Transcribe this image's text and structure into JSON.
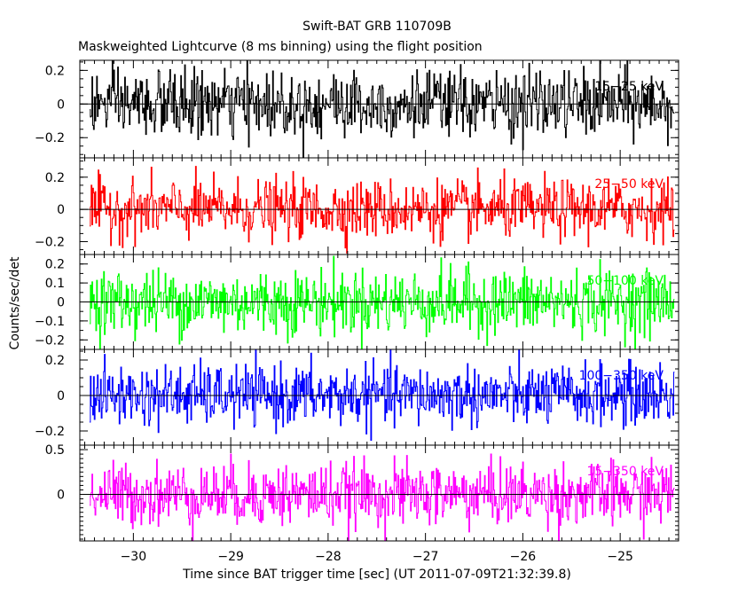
{
  "chart_data": {
    "type": "line",
    "title": "Swift-BAT GRB 110709B",
    "subtitle": "Maskweighted Lightcurve (8 ms binning) using the flight position",
    "xlabel": "Time since BAT trigger time [sec] (UT 2011-07-09T21:32:39.8)",
    "ylabel": "Counts/sec/det",
    "xlim": [
      -30.55,
      -24.4
    ],
    "xticks": [
      -30,
      -29,
      -28,
      -27,
      -26,
      -25
    ],
    "xtick_labels": [
      "−30",
      "−29",
      "−28",
      "−27",
      "−26",
      "−25"
    ],
    "data_range": [
      -30.45,
      -24.45
    ],
    "bin_width_s": 0.008,
    "panels": [
      {
        "name": "15-25 keV",
        "label": "15−25 keV",
        "color": "#000000",
        "ylim": [
          -0.32,
          0.26
        ],
        "amplitude": 0.2,
        "yticks": [
          -0.2,
          0,
          0.2
        ],
        "ytick_labels": [
          "−0.2",
          "0",
          "0.2"
        ]
      },
      {
        "name": "25-50 keV",
        "label": "25−50 keV",
        "color": "#ff0000",
        "ylim": [
          -0.28,
          0.32
        ],
        "amplitude": 0.18,
        "yticks": [
          -0.2,
          0,
          0.2
        ],
        "ytick_labels": [
          "−0.2",
          "0",
          "0.2"
        ]
      },
      {
        "name": "50-100 keV",
        "label": "50−100 keV",
        "color": "#00ff00",
        "ylim": [
          -0.25,
          0.25
        ],
        "amplitude": 0.17,
        "yticks": [
          -0.2,
          -0.1,
          0,
          0.1,
          0.2
        ],
        "ytick_labels": [
          "−0.2",
          "−0.1",
          "0",
          "0.1",
          "0.2"
        ]
      },
      {
        "name": "100-350 keV",
        "label": "100−350 keV",
        "color": "#0000ff",
        "ylim": [
          -0.28,
          0.26
        ],
        "amplitude": 0.17,
        "yticks": [
          -0.2,
          0,
          0.2
        ],
        "ytick_labels": [
          "−0.2",
          "0",
          "0.2"
        ]
      },
      {
        "name": "15-350 keV",
        "label": "15−350 keV",
        "color": "#ff00ff",
        "ylim": [
          -0.52,
          0.55
        ],
        "amplitude": 0.35,
        "yticks": [
          0,
          0.5
        ],
        "ytick_labels": [
          "0",
          "0.5"
        ]
      }
    ],
    "grid": false,
    "legend": "none"
  }
}
